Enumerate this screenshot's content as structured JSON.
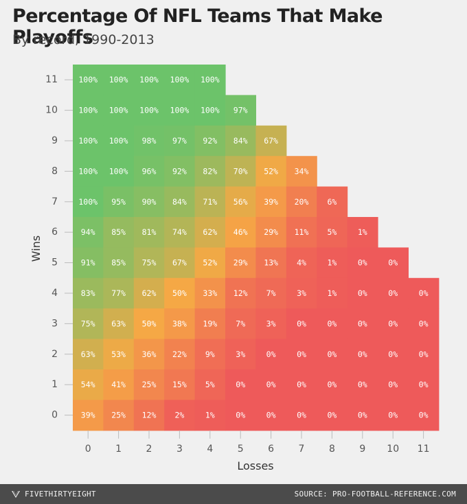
{
  "title": "Percentage Of NFL Teams That Make Playoffs",
  "subtitle": "By record, 1990-2013",
  "footer": {
    "brand": "FIVETHIRTYEIGHT",
    "brand_icon": "fivethirtyeight-logo-icon",
    "source": "SOURCE: PRO-FOOTBALL-REFERENCE.COM"
  },
  "colors": {
    "high": "#6cc36a",
    "mid": "#f5a845",
    "low": "#ee5a5a",
    "background": "#f0f0f0",
    "footer": "#4b4b4b"
  },
  "chart_data": {
    "type": "heatmap",
    "title": "Percentage Of NFL Teams That Make Playoffs",
    "subtitle": "By record, 1990-2013",
    "xlabel": "Losses",
    "ylabel": "Wins",
    "x": [
      "0",
      "1",
      "2",
      "3",
      "4",
      "5",
      "6",
      "7",
      "8",
      "9",
      "10",
      "11"
    ],
    "y": [
      "11",
      "10",
      "9",
      "8",
      "7",
      "6",
      "5",
      "4",
      "3",
      "2",
      "1",
      "0"
    ],
    "rows": [
      {
        "wins": 11,
        "values": [
          "100%",
          "100%",
          "100%",
          "100%",
          "100%"
        ]
      },
      {
        "wins": 10,
        "values": [
          "100%",
          "100%",
          "100%",
          "100%",
          "100%",
          "97%"
        ]
      },
      {
        "wins": 9,
        "values": [
          "100%",
          "100%",
          "98%",
          "97%",
          "92%",
          "84%",
          "67%"
        ]
      },
      {
        "wins": 8,
        "values": [
          "100%",
          "100%",
          "96%",
          "92%",
          "82%",
          "70%",
          "52%",
          "34%"
        ]
      },
      {
        "wins": 7,
        "values": [
          "100%",
          "95%",
          "90%",
          "84%",
          "71%",
          "56%",
          "39%",
          "20%",
          "6%"
        ]
      },
      {
        "wins": 6,
        "values": [
          "94%",
          "85%",
          "81%",
          "74%",
          "62%",
          "46%",
          "29%",
          "11%",
          "5%",
          "1%"
        ]
      },
      {
        "wins": 5,
        "values": [
          "91%",
          "85%",
          "75%",
          "67%",
          "52%",
          "29%",
          "13%",
          "4%",
          "1%",
          "0%",
          "0%"
        ]
      },
      {
        "wins": 4,
        "values": [
          "83%",
          "77%",
          "62%",
          "50%",
          "33%",
          "12%",
          "7%",
          "3%",
          "1%",
          "0%",
          "0%",
          "0%"
        ]
      },
      {
        "wins": 3,
        "values": [
          "75%",
          "63%",
          "50%",
          "38%",
          "19%",
          "7%",
          "3%",
          "0%",
          "0%",
          "0%",
          "0%",
          "0%"
        ]
      },
      {
        "wins": 2,
        "values": [
          "63%",
          "53%",
          "36%",
          "22%",
          "9%",
          "3%",
          "0%",
          "0%",
          "0%",
          "0%",
          "0%",
          "0%"
        ]
      },
      {
        "wins": 1,
        "values": [
          "54%",
          "41%",
          "25%",
          "15%",
          "5%",
          "0%",
          "0%",
          "0%",
          "0%",
          "0%",
          "0%",
          "0%"
        ]
      },
      {
        "wins": 0,
        "values": [
          "39%",
          "25%",
          "12%",
          "2%",
          "1%",
          "0%",
          "0%",
          "0%",
          "0%",
          "0%",
          "0%",
          "0%"
        ]
      }
    ],
    "color_scale": "green (100%) → orange (~50%) → red (0%)",
    "grid": false
  }
}
